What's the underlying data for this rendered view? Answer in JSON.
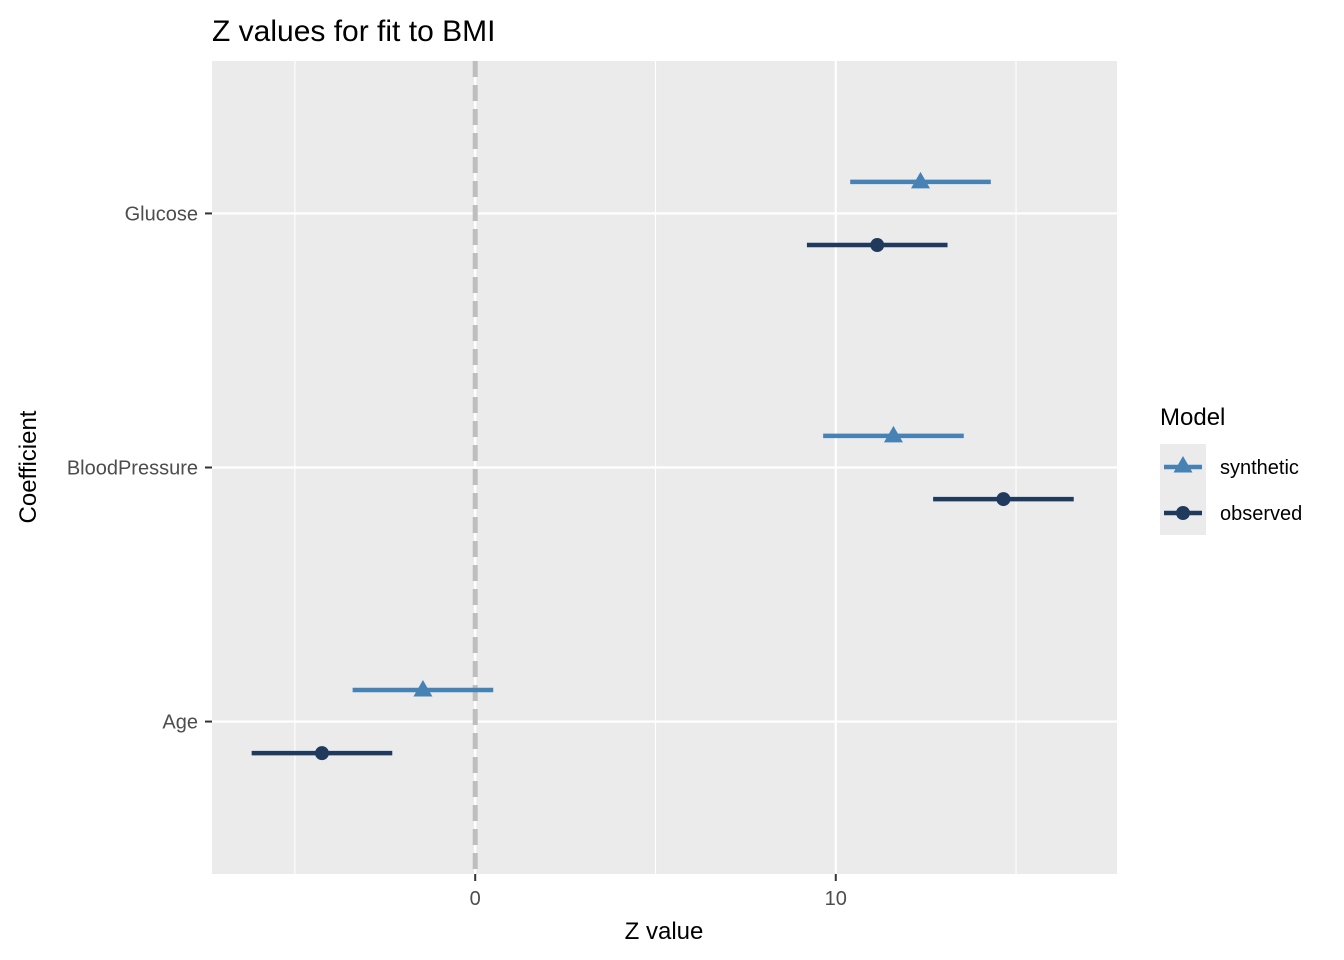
{
  "chart_data": {
    "type": "scatter",
    "title": "Z values for fit to BMI",
    "xlabel": "Z value",
    "ylabel": "Coefficient",
    "xlim": [
      -7.3,
      17.8
    ],
    "x_ticks": [
      {
        "value": 0,
        "label": "0"
      },
      {
        "value": 10,
        "label": "10"
      }
    ],
    "x_minor_ticks": [
      -5,
      5,
      15
    ],
    "categories": [
      "Age",
      "BloodPressure",
      "Glucose"
    ],
    "reference_line": {
      "x": 0,
      "style": "dashed",
      "color": "#bebebe"
    },
    "grid": true,
    "panel_background": "#ebebeb",
    "legend": {
      "title": "Model",
      "position": "right",
      "entries": [
        {
          "label": "synthetic",
          "color": "#4682b4",
          "shape": "triangle"
        },
        {
          "label": "observed",
          "color": "#1f3a5c",
          "shape": "circle"
        }
      ]
    },
    "series": [
      {
        "name": "synthetic",
        "color": "#4682b4",
        "shape": "triangle",
        "points": [
          {
            "category": "Age",
            "estimate": -1.45,
            "low": -3.4,
            "high": 0.5
          },
          {
            "category": "BloodPressure",
            "estimate": 11.6,
            "low": 9.65,
            "high": 13.55
          },
          {
            "category": "Glucose",
            "estimate": 12.35,
            "low": 10.4,
            "high": 14.3
          }
        ]
      },
      {
        "name": "observed",
        "color": "#1f3a5c",
        "shape": "circle",
        "points": [
          {
            "category": "Age",
            "estimate": -4.25,
            "low": -6.2,
            "high": -2.3
          },
          {
            "category": "BloodPressure",
            "estimate": 14.65,
            "low": 12.7,
            "high": 16.6
          },
          {
            "category": "Glucose",
            "estimate": 11.15,
            "low": 9.2,
            "high": 13.1
          }
        ]
      }
    ]
  }
}
